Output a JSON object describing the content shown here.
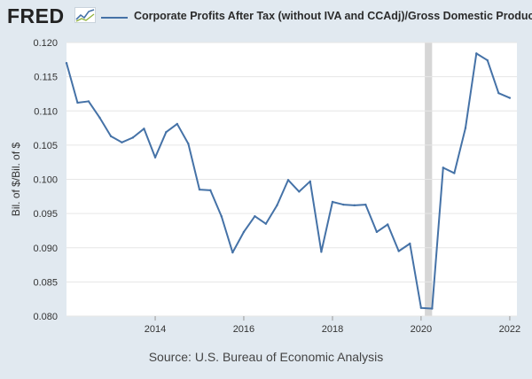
{
  "brand": {
    "logo_text": "FRED"
  },
  "colors": {
    "line": "#4572a7",
    "recession": "#d6d6d6",
    "plot_bg": "#ffffff",
    "page_bg": "#e1e9f0",
    "grid": "#e6e6e6"
  },
  "chart_data": {
    "type": "line",
    "series": [
      {
        "name": "Corporate Profits After Tax (without IVA and CCAdj)/Gross Domestic Product",
        "x": [
          "2012-01-01",
          "2012-04-01",
          "2012-07-01",
          "2012-10-01",
          "2013-01-01",
          "2013-04-01",
          "2013-07-01",
          "2013-10-01",
          "2014-01-01",
          "2014-04-01",
          "2014-07-01",
          "2014-10-01",
          "2015-01-01",
          "2015-04-01",
          "2015-07-01",
          "2015-10-01",
          "2016-01-01",
          "2016-04-01",
          "2016-07-01",
          "2016-10-01",
          "2017-01-01",
          "2017-04-01",
          "2017-07-01",
          "2017-10-01",
          "2018-01-01",
          "2018-04-01",
          "2018-07-01",
          "2018-10-01",
          "2019-01-01",
          "2019-04-01",
          "2019-07-01",
          "2019-10-01",
          "2020-01-01",
          "2020-04-01",
          "2020-07-01",
          "2020-10-01",
          "2021-01-01",
          "2021-04-01",
          "2021-07-01",
          "2021-10-01",
          "2022-01-01"
        ],
        "values": [
          0.117,
          0.1112,
          0.1114,
          0.109,
          0.1063,
          0.1054,
          0.1061,
          0.1074,
          0.1032,
          0.1069,
          0.1081,
          0.1052,
          0.0985,
          0.0984,
          0.0946,
          0.0893,
          0.0923,
          0.0946,
          0.0935,
          0.0962,
          0.0999,
          0.0982,
          0.0997,
          0.0894,
          0.0967,
          0.0963,
          0.0962,
          0.0963,
          0.0923,
          0.0934,
          0.0895,
          0.0906,
          0.0812,
          0.0811,
          0.1017,
          0.1009,
          0.1075,
          0.1184,
          0.1174,
          0.1126,
          0.1119
        ]
      }
    ],
    "xlim": [
      "2012-01-01",
      "2022-03-01"
    ],
    "ylim": [
      0.08,
      0.12
    ],
    "yticks": [
      "0.080",
      "0.085",
      "0.090",
      "0.095",
      "0.100",
      "0.105",
      "0.110",
      "0.115",
      "0.120"
    ],
    "xticks": [
      "2014",
      "2016",
      "2018",
      "2020",
      "2022"
    ],
    "recession": [
      "2020-02-01",
      "2020-04-01"
    ],
    "ylabel": "Bil. of $/Bil. of $",
    "xlabel": "",
    "grid": true,
    "legend": "top"
  },
  "source": "Source: U.S. Bureau of Economic Analysis"
}
